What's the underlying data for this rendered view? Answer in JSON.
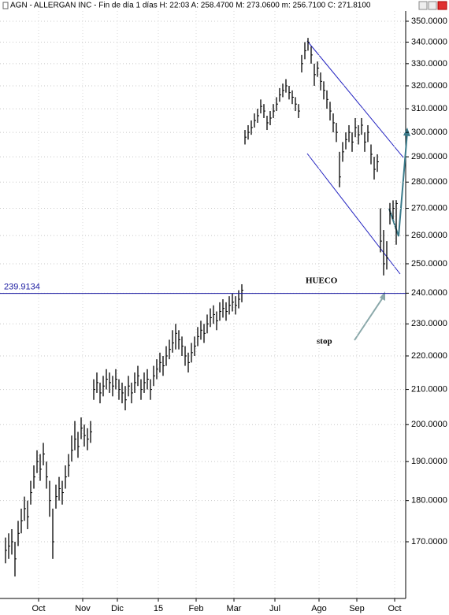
{
  "chart_data": {
    "type": "ohlc",
    "title": "AGN - ALLERGAN INC - Fin de día 1 días  H: 22:03  A: 258.4700  M: 273.0600  m: 256.7100  C: 271.8100",
    "color": "#000000",
    "log_scale": true,
    "grid": true,
    "xlim": [
      0,
      125
    ],
    "xticks": [
      {
        "value": 11,
        "label": "Oct"
      },
      {
        "value": 25,
        "label": "Nov"
      },
      {
        "value": 36,
        "label": "Dic"
      },
      {
        "value": 49,
        "label": "15"
      },
      {
        "value": 61,
        "label": "Feb"
      },
      {
        "value": 73,
        "label": "Mar"
      },
      {
        "value": 86,
        "label": "Jul"
      },
      {
        "value": 100,
        "label": "Ago"
      },
      {
        "value": 112,
        "label": "Sep"
      },
      {
        "value": 124,
        "label": "Oct"
      }
    ],
    "ylim": [
      158,
      355
    ],
    "yticks": [
      {
        "value": 170,
        "label": "170.0000"
      },
      {
        "value": 180,
        "label": "180.0000"
      },
      {
        "value": 190,
        "label": "190.0000"
      },
      {
        "value": 200,
        "label": "200.0000"
      },
      {
        "value": 210,
        "label": "210.0000"
      },
      {
        "value": 220,
        "label": "220.0000"
      },
      {
        "value": 230,
        "label": "230.0000"
      },
      {
        "value": 240,
        "label": "240.0000"
      },
      {
        "value": 250,
        "label": "250.0000"
      },
      {
        "value": 260,
        "label": "260.0000"
      },
      {
        "value": 270,
        "label": "270.0000"
      },
      {
        "value": 280,
        "label": "280.0000"
      },
      {
        "value": 290,
        "label": "290.0000"
      },
      {
        "value": 300,
        "label": "300.0000"
      },
      {
        "value": 310,
        "label": "310.0000"
      },
      {
        "value": 320,
        "label": "320.0000"
      },
      {
        "value": 330,
        "label": "330.0000"
      },
      {
        "value": 340,
        "label": "340.0000"
      },
      {
        "value": 350,
        "label": "350.0000"
      }
    ],
    "hline": {
      "value": 239.9134,
      "label": "239.9134",
      "color": "#1a1aa0"
    },
    "annotations": [
      "HUECO",
      "stop"
    ],
    "high": [
      171,
      172,
      173,
      170,
      175,
      178,
      181,
      180,
      185,
      189,
      193,
      192,
      195,
      190,
      185,
      178,
      184,
      186,
      185,
      189,
      192,
      197,
      201,
      198,
      202,
      200,
      199,
      201,
      213,
      215,
      212,
      214,
      216,
      215,
      214,
      216,
      213,
      212,
      211,
      214,
      212,
      215,
      217,
      213,
      215,
      216,
      213,
      217,
      219,
      221,
      220,
      223,
      225,
      228,
      230,
      228,
      226,
      223,
      221,
      224,
      226,
      229,
      231,
      230,
      233,
      235,
      236,
      234,
      237,
      238,
      237,
      239,
      240,
      239,
      241,
      243,
      301,
      303,
      305,
      308,
      310,
      314,
      312,
      307,
      309,
      312,
      315,
      319,
      321,
      323,
      320,
      318,
      315,
      312,
      334,
      340,
      342,
      338,
      330,
      331,
      326,
      322,
      318,
      313,
      308,
      304,
      292,
      296,
      300,
      303,
      300,
      306,
      303,
      306,
      300,
      303,
      295,
      290,
      291,
      270,
      262,
      258,
      272,
      273,
      273.06
    ],
    "low": [
      165,
      166,
      167,
      162,
      169,
      172,
      175,
      173,
      179,
      183,
      187,
      185,
      189,
      183,
      176,
      166,
      178,
      180,
      179,
      183,
      186,
      190,
      193,
      191,
      196,
      194,
      193,
      195,
      207,
      209,
      206,
      208,
      210,
      209,
      208,
      210,
      207,
      206,
      204,
      208,
      206,
      209,
      211,
      207,
      209,
      210,
      207,
      211,
      213,
      215,
      214,
      217,
      219,
      221,
      222,
      222,
      220,
      217,
      215,
      218,
      220,
      223,
      225,
      224,
      227,
      229,
      230,
      228,
      231,
      232,
      231,
      233,
      234,
      233,
      235,
      237,
      295,
      297,
      299,
      302,
      304,
      308,
      306,
      301,
      303,
      306,
      309,
      313,
      315,
      317,
      314,
      312,
      309,
      306,
      326,
      332,
      336,
      330,
      320,
      324,
      318,
      314,
      310,
      305,
      300,
      296,
      278,
      288,
      293,
      296,
      292,
      298,
      295,
      299,
      292,
      296,
      287,
      281,
      284,
      254,
      246,
      248,
      264,
      266,
      256.71
    ],
    "close": [
      168,
      169,
      170,
      166,
      172,
      175,
      178,
      176,
      182,
      186,
      190,
      188,
      192,
      186,
      180,
      170,
      181,
      183,
      182,
      186,
      189,
      193,
      196,
      194,
      199,
      197,
      196,
      198,
      210,
      212,
      209,
      211,
      213,
      212,
      211,
      213,
      210,
      209,
      207,
      211,
      209,
      212,
      214,
      210,
      212,
      213,
      210,
      214,
      216,
      218,
      217,
      220,
      222,
      224,
      227,
      225,
      223,
      220,
      218,
      221,
      223,
      226,
      228,
      227,
      230,
      232,
      233,
      231,
      234,
      235,
      234,
      236,
      237,
      236,
      238,
      241,
      298,
      300,
      302,
      305,
      307,
      311,
      309,
      304,
      306,
      309,
      312,
      316,
      318,
      320,
      317,
      315,
      312,
      309,
      330,
      336,
      340,
      334,
      325,
      328,
      322,
      318,
      314,
      309,
      304,
      300,
      282,
      292,
      297,
      300,
      296,
      302,
      299,
      303,
      296,
      300,
      291,
      285,
      288,
      258,
      250,
      252,
      268,
      270,
      271.81
    ]
  }
}
